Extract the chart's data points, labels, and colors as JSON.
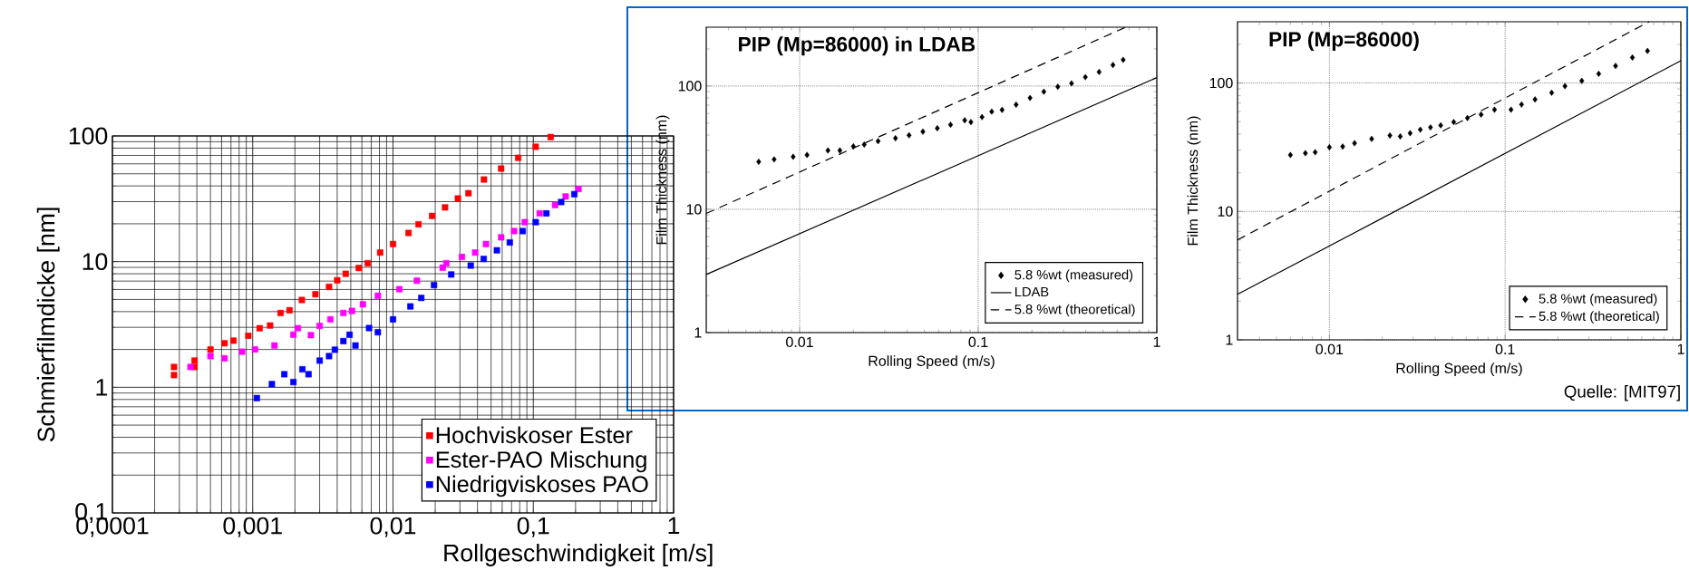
{
  "chart_data": [
    {
      "type": "scatter",
      "xlabel": "Rollgeschwindigkeit [m/s]",
      "ylabel": "Schmierfilmdicke [nm]",
      "log": "xy",
      "grid": true,
      "legend": "bottom right",
      "marker": "square",
      "xlim": [
        0.0001,
        1
      ],
      "ylim": [
        0.1,
        100
      ],
      "xticks": [
        {
          "value": 0.0001,
          "label": "0,0001"
        },
        {
          "value": 0.001,
          "label": "0,001"
        },
        {
          "value": 0.01,
          "label": "0,01"
        },
        {
          "value": 0.1,
          "label": "0,1"
        },
        1
      ],
      "yticks": [
        {
          "value": 0.1,
          "label": "0,1"
        },
        1,
        10,
        100
      ],
      "series": [
        {
          "name": "Hochviskoser Ester",
          "color": "#ff0000",
          "x": [
            0.000275,
            0.000275,
            0.000385,
            0.000385,
            0.0005,
            0.00063,
            0.00073,
            0.00093,
            0.00112,
            0.00133,
            0.00158,
            0.00183,
            0.00224,
            0.0028,
            0.0035,
            0.004,
            0.0046,
            0.0057,
            0.0066,
            0.0081,
            0.01,
            0.0129,
            0.0152,
            0.019,
            0.0235,
            0.029,
            0.0345,
            0.0445,
            0.059,
            0.078,
            0.104,
            0.133
          ],
          "values": [
            1.45,
            1.25,
            1.63,
            1.45,
            2.0,
            2.24,
            2.35,
            2.57,
            2.95,
            3.1,
            3.9,
            4.1,
            4.95,
            5.5,
            6.3,
            7.1,
            8.0,
            8.9,
            9.7,
            11.8,
            13.8,
            16.9,
            19.8,
            23.1,
            27,
            31.8,
            35,
            45,
            55,
            67,
            82,
            98
          ]
        },
        {
          "name": "Ester-PAO Mischung",
          "color": "#ff00ff",
          "x": [
            0.00036,
            0.0005,
            0.00063,
            0.00084,
            0.00104,
            0.00143,
            0.00195,
            0.0021,
            0.0026,
            0.003,
            0.00358,
            0.00443,
            0.0051,
            0.0061,
            0.0078,
            0.0111,
            0.0148,
            0.0226,
            0.024,
            0.031,
            0.0385,
            0.046,
            0.059,
            0.073,
            0.087,
            0.111,
            0.143,
            0.17,
            0.21
          ],
          "values": [
            1.45,
            1.77,
            1.7,
            1.92,
            2.0,
            2.15,
            2.62,
            2.95,
            2.6,
            3.08,
            3.47,
            3.9,
            4.05,
            4.57,
            5.35,
            6.03,
            7.05,
            8.95,
            9.7,
            10.9,
            11.8,
            13.8,
            15.6,
            17.5,
            20.6,
            24.2,
            28.2,
            33,
            37.8
          ]
        },
        {
          "name": "Niedrigviskoses PAO",
          "color": "#0000ff",
          "x": [
            0.00107,
            0.00137,
            0.00168,
            0.00195,
            0.00226,
            0.0025,
            0.003,
            0.0035,
            0.00385,
            0.00443,
            0.0049,
            0.0054,
            0.00675,
            0.0078,
            0.01,
            0.0133,
            0.0159,
            0.0196,
            0.026,
            0.0358,
            0.0443,
            0.055,
            0.068,
            0.084,
            0.104,
            0.124,
            0.158,
            0.196
          ],
          "values": [
            0.82,
            1.06,
            1.27,
            1.1,
            1.39,
            1.27,
            1.63,
            1.77,
            1.99,
            2.33,
            2.62,
            2.15,
            2.96,
            2.74,
            3.47,
            4.4,
            5.14,
            6.5,
            7.9,
            9.3,
            10.5,
            12.3,
            14.2,
            17.5,
            20.6,
            24.2,
            29.8,
            34.4
          ]
        }
      ]
    },
    {
      "type": "scatter",
      "title": "PIP (Mp=86000) in LDAB",
      "xlabel": "Rolling Speed (m/s)",
      "ylabel": "Film Thickness (nm)",
      "log": "xy",
      "grid": true,
      "legend": "bottom right",
      "xlim": [
        0.003,
        1
      ],
      "ylim": [
        1,
        300
      ],
      "xticks": [
        0.01,
        0.1,
        1
      ],
      "yticks": [
        1,
        10,
        100
      ],
      "series": [
        {
          "name": "5.8 %wt (measured)",
          "type": "scatter",
          "marker": "diamond",
          "color": "#000000",
          "x": [
            0.0059,
            0.0072,
            0.0092,
            0.011,
            0.0144,
            0.0168,
            0.02,
            0.023,
            0.0275,
            0.0344,
            0.041,
            0.049,
            0.059,
            0.07,
            0.084,
            0.091,
            0.105,
            0.119,
            0.136,
            0.163,
            0.195,
            0.233,
            0.279,
            0.333,
            0.398,
            0.475,
            0.568,
            0.648
          ],
          "values": [
            24.3,
            25.4,
            26.7,
            27.6,
            30,
            30,
            32.4,
            33.5,
            35.7,
            37.7,
            39.9,
            42.6,
            45.4,
            48.5,
            52.7,
            51,
            56,
            62,
            64,
            70.5,
            80,
            90,
            98.7,
            105,
            118,
            130,
            148,
            163
          ]
        },
        {
          "name": "LDAB",
          "type": "line",
          "line_style": "solid",
          "color": "#000000",
          "x": [
            0.003,
            1
          ],
          "values": [
            2.96,
            117
          ]
        },
        {
          "name": "5.8 %wt (theoretical)",
          "type": "line",
          "line_style": "dashed",
          "color": "#000000",
          "x": [
            0.003,
            0.67
          ],
          "values": [
            9.25,
            300
          ]
        }
      ]
    },
    {
      "type": "scatter",
      "title": "PIP (Mp=86000)",
      "xlabel": "Rolling Speed (m/s)",
      "ylabel": "Film Thickness (nm)",
      "log": "xy",
      "grid": true,
      "legend": "bottom right",
      "xlim": [
        0.003,
        1
      ],
      "ylim": [
        1,
        300
      ],
      "xticks": [
        0.01,
        0.1,
        1
      ],
      "yticks": [
        1,
        10,
        100
      ],
      "annotations": [
        "Quelle: [MIT97]"
      ],
      "series": [
        {
          "name": "5.8 %wt (measured)",
          "type": "scatter",
          "marker": "diamond",
          "color": "#000000",
          "x": [
            0.006,
            0.0073,
            0.0083,
            0.01,
            0.0119,
            0.0139,
            0.0174,
            0.0221,
            0.0253,
            0.0288,
            0.0329,
            0.0376,
            0.043,
            0.051,
            0.061,
            0.073,
            0.087,
            0.108,
            0.124,
            0.148,
            0.184,
            0.219,
            0.273,
            0.341,
            0.425,
            0.53,
            0.646
          ],
          "values": [
            27.5,
            28.4,
            28.9,
            31.6,
            32,
            34,
            36.7,
            39,
            38.4,
            40.7,
            43.3,
            45.1,
            46.8,
            49.7,
            53.4,
            56.8,
            62,
            62,
            68,
            74.5,
            84,
            94.6,
            104,
            118,
            136,
            158,
            178
          ]
        },
        {
          "type": "line",
          "line_style": "solid",
          "color": "#000000",
          "x": [
            0.003,
            1
          ],
          "values": [
            2.26,
            149
          ]
        },
        {
          "name": "5.8 %wt (theoretical)",
          "type": "line",
          "line_style": "dashed",
          "color": "#000000",
          "x": [
            0.003,
            0.66
          ],
          "values": [
            6.0,
            300
          ]
        }
      ]
    }
  ]
}
